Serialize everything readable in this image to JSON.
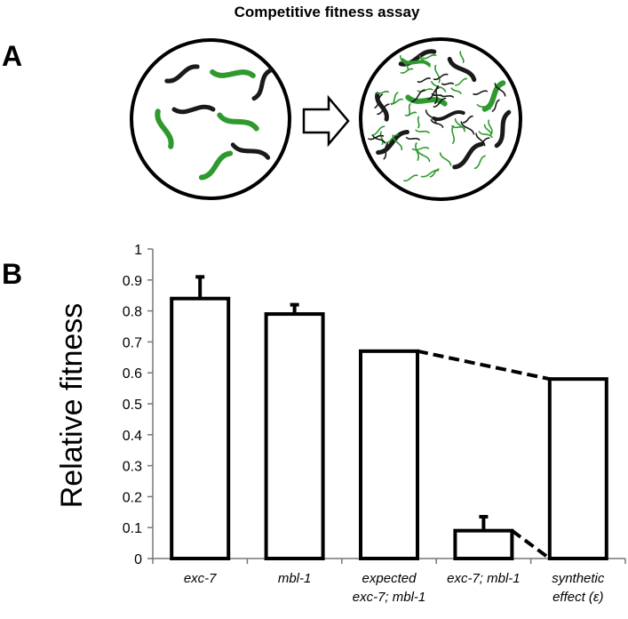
{
  "figure": {
    "title": "Competitive fitness assay",
    "panel_a_label": "A",
    "panel_b_label": "B"
  },
  "chart_data": {
    "type": "bar",
    "ylabel": "Relative fitness",
    "xlabel": "",
    "ylim": [
      0,
      1
    ],
    "yticks": [
      "0",
      "0.1",
      "0.2",
      "0.3",
      "0.4",
      "0.5",
      "0.6",
      "0.7",
      "0.8",
      "0.9",
      "1"
    ],
    "categories": [
      [
        "exc-7"
      ],
      [
        "mbl-1"
      ],
      [
        "expected",
        "exc-7; mbl-1"
      ],
      [
        "exc-7; mbl-1"
      ],
      [
        "synthetic",
        "effect (ε)"
      ]
    ],
    "values": [
      0.84,
      0.79,
      0.67,
      0.09,
      0.58
    ],
    "error_upper": [
      0.91,
      0.82,
      null,
      0.135,
      null
    ],
    "annotations": [
      {
        "type": "dashed-connector",
        "from_bar": 2,
        "to_bar": 4,
        "at": "top"
      },
      {
        "type": "dashed-connector",
        "from_bar": 3,
        "to_bar": 4,
        "at": "baseline"
      }
    ],
    "grid": false,
    "legend": "none"
  },
  "colors": {
    "bar_fill": "#ffffff",
    "bar_stroke": "#000000",
    "axis": "#777777",
    "worm_green": "#2e9a2e",
    "worm_black": "#1a1a1a"
  }
}
